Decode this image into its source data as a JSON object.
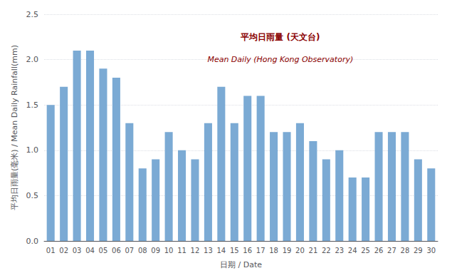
{
  "chart_data": {
    "type": "bar",
    "categories": [
      "01",
      "02",
      "03",
      "04",
      "05",
      "06",
      "07",
      "08",
      "09",
      "10",
      "11",
      "12",
      "13",
      "14",
      "15",
      "16",
      "17",
      "18",
      "19",
      "20",
      "21",
      "22",
      "23",
      "24",
      "25",
      "26",
      "27",
      "28",
      "29",
      "30"
    ],
    "values": [
      1.5,
      1.7,
      2.1,
      2.1,
      1.9,
      1.8,
      1.3,
      0.8,
      0.9,
      1.2,
      1.0,
      0.9,
      1.3,
      1.7,
      1.3,
      1.6,
      1.6,
      1.2,
      1.2,
      1.3,
      1.1,
      0.9,
      1.0,
      0.7,
      0.7,
      1.2,
      1.2,
      1.2,
      0.9,
      0.8
    ],
    "color": "#7baad4",
    "xlabel": "日期 / Date",
    "ylabel": "平均日雨量(毫米) / Mean Daily Rainfall(mm)",
    "annotations": [
      "平均日雨量 (天文台)",
      "Mean Daily (Hong Kong Observatory)"
    ],
    "ylim": [
      0,
      2.5
    ],
    "yticks": [
      {
        "value": 0,
        "label": "0.0"
      },
      0.5,
      {
        "value": 1.0,
        "label": "1.0"
      },
      1.5,
      {
        "value": 2.0,
        "label": "2.0"
      },
      2.5
    ],
    "grid": true
  }
}
